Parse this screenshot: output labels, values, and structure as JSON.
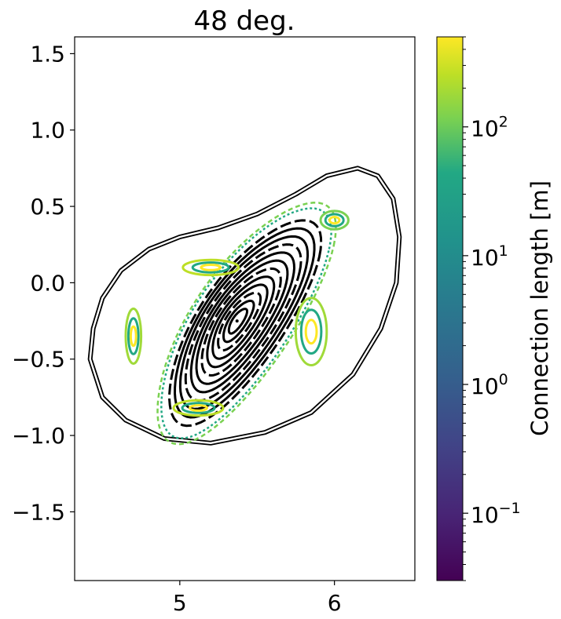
{
  "chart_data": {
    "type": "scatter",
    "title": "48 deg.",
    "xlabel": "",
    "ylabel": "",
    "xlim": [
      4.32,
      6.52
    ],
    "ylim": [
      -1.95,
      1.61
    ],
    "x_ticks": [
      5,
      6
    ],
    "x_tick_labels": [
      "5",
      "6"
    ],
    "y_ticks": [
      1.5,
      1.0,
      0.5,
      0.0,
      -0.5,
      -1.0,
      -1.5
    ],
    "y_tick_labels": [
      "1.5",
      "1.0",
      "0.5",
      "0.0",
      "−0.5",
      "−1.0",
      "−1.5"
    ],
    "grid": false,
    "magnetic_axis": [
      5.37,
      -0.25
    ],
    "colorbar": {
      "label": "Connection length [m]",
      "scale": "log",
      "range": [
        0.03,
        500
      ],
      "colormap": "viridis",
      "ticks": [
        {
          "value": 0.1,
          "base": "10",
          "exp": "−1"
        },
        {
          "value": 1,
          "base": "10",
          "exp": "0"
        },
        {
          "value": 10,
          "base": "10",
          "exp": "1"
        },
        {
          "value": 100,
          "base": "10",
          "exp": "2"
        }
      ]
    },
    "wall": {
      "color": "#000000",
      "points": [
        [
          4.42,
          -0.5
        ],
        [
          4.44,
          -0.3
        ],
        [
          4.5,
          -0.1
        ],
        [
          4.62,
          0.08
        ],
        [
          4.8,
          0.22
        ],
        [
          5.0,
          0.3
        ],
        [
          5.25,
          0.36
        ],
        [
          5.5,
          0.45
        ],
        [
          5.75,
          0.58
        ],
        [
          5.95,
          0.7
        ],
        [
          6.15,
          0.75
        ],
        [
          6.28,
          0.7
        ],
        [
          6.38,
          0.55
        ],
        [
          6.42,
          0.3
        ],
        [
          6.4,
          0.0
        ],
        [
          6.3,
          -0.3
        ],
        [
          6.12,
          -0.6
        ],
        [
          5.85,
          -0.85
        ],
        [
          5.55,
          -0.98
        ],
        [
          5.2,
          -1.05
        ],
        [
          4.9,
          -1.02
        ],
        [
          4.65,
          -0.9
        ],
        [
          4.5,
          -0.75
        ]
      ]
    },
    "closed_surfaces": {
      "color": "#000000",
      "note_none": "",
      "center": [
        5.37,
        -0.25
      ],
      "scales": [
        0.12,
        0.2,
        0.28,
        0.36,
        0.44,
        0.52,
        0.6,
        0.68,
        0.76,
        0.84,
        0.92,
        1.0
      ]
    },
    "island_chains": [
      {
        "x": 6.0,
        "y": 0.41,
        "rx": 0.09,
        "ry": 0.06,
        "color": "#7ad151"
      },
      {
        "x": 4.7,
        "y": -0.35,
        "rx": 0.05,
        "ry": 0.18,
        "color": "#a0da39"
      },
      {
        "x": 5.12,
        "y": -0.82,
        "rx": 0.16,
        "ry": 0.05,
        "color": "#bddf26"
      },
      {
        "x": 5.2,
        "y": 0.1,
        "rx": 0.18,
        "ry": 0.05,
        "color": "#bddf26"
      },
      {
        "x": 5.85,
        "y": -0.32,
        "rx": 0.1,
        "ry": 0.22,
        "color": "#a0da39"
      }
    ],
    "stochastic_layer": {
      "color": "#22a884",
      "scale": 1.12
    }
  }
}
